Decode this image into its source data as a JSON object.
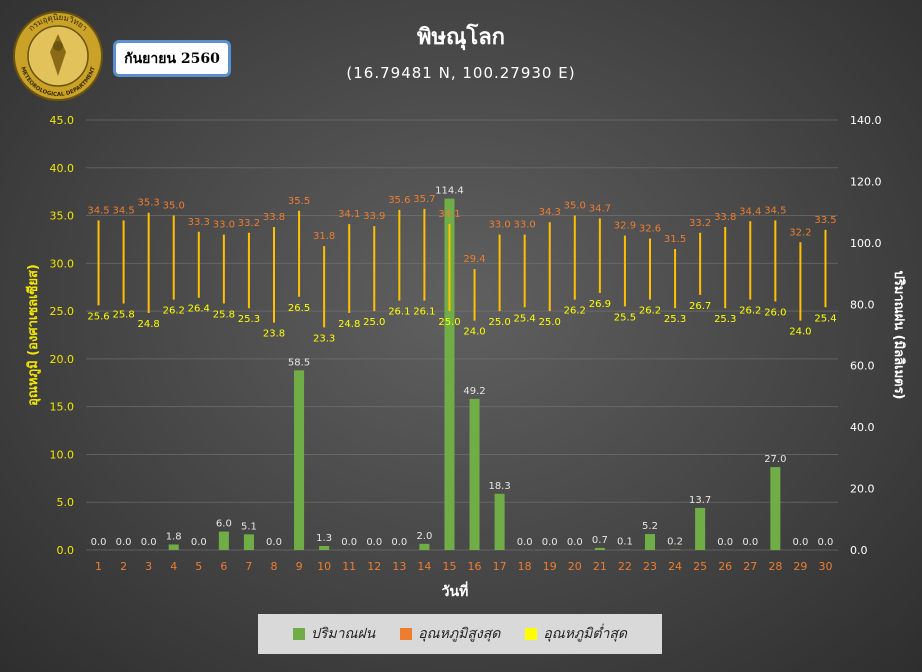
{
  "logo": {
    "text_top": "กรมอุตุนิยมวิทยา",
    "text_bottom": "METEOROLOGICAL DEPARTMENT"
  },
  "month_label": "กันยายน 2560",
  "chart_data": {
    "type": "bar+line",
    "title": "พิษณุโลก",
    "subtitle": "(16.79481 N, 100.27930 E)",
    "xlabel": "วันที่",
    "ylabel_left": "อุณหภูมิ (องศาเซลเซียส)",
    "ylabel_right": "ปริมาณฝน (มิลลิเมตร)",
    "ylim_left": [
      0,
      45
    ],
    "ylim_right": [
      0,
      140
    ],
    "yticks_left": [
      "0.0",
      "5.0",
      "10.0",
      "15.0",
      "20.0",
      "25.0",
      "30.0",
      "35.0",
      "40.0",
      "45.0"
    ],
    "yticks_right": [
      "0.0",
      "20.0",
      "40.0",
      "60.0",
      "80.0",
      "100.0",
      "120.0",
      "140.0"
    ],
    "grid": true,
    "legend_position": "bottom",
    "categories": [
      "1",
      "2",
      "3",
      "4",
      "5",
      "6",
      "7",
      "8",
      "9",
      "10",
      "11",
      "12",
      "13",
      "14",
      "15",
      "16",
      "17",
      "18",
      "19",
      "20",
      "21",
      "22",
      "23",
      "24",
      "25",
      "26",
      "27",
      "28",
      "29",
      "30"
    ],
    "series": [
      {
        "name": "ปริมาณฝน",
        "axis": "right",
        "color": "#70ad47",
        "values": [
          0.0,
          0.0,
          0.0,
          1.8,
          0.0,
          6.0,
          5.1,
          0.0,
          58.5,
          1.3,
          0.0,
          0.0,
          0.0,
          2.0,
          114.4,
          49.2,
          18.3,
          0.0,
          0.0,
          0.0,
          0.7,
          0.1,
          5.2,
          0.2,
          13.7,
          0.0,
          0.0,
          27.0,
          0.0,
          0.0
        ],
        "labels": [
          "0.0",
          "0.0",
          "0.0",
          "1.8",
          "0.0",
          "6.0",
          "5.1",
          "0.0",
          "58.5",
          "1.3",
          "0.0",
          "0.0",
          "0.0",
          "2.0",
          "114.4",
          "49.2",
          "18.3",
          "0.0",
          "0.0",
          "0.0",
          "0.7",
          "0.1",
          "5.2",
          "0.2",
          "13.7",
          "0.0",
          "0.0",
          "27.0",
          "0.0",
          "0.0"
        ]
      },
      {
        "name": "อุณหภูมิสูงสุด",
        "axis": "left",
        "color": "#ed7d31",
        "values": [
          34.5,
          34.5,
          35.3,
          35.0,
          33.3,
          33.0,
          33.2,
          33.8,
          35.5,
          31.8,
          34.1,
          33.9,
          35.6,
          35.7,
          34.1,
          29.4,
          33.0,
          33.0,
          34.3,
          35.0,
          34.7,
          32.9,
          32.6,
          31.5,
          33.2,
          33.8,
          34.4,
          34.5,
          32.2,
          33.5
        ],
        "labels": [
          "34.5",
          "34.5",
          "35.3",
          "35.0",
          "33.3",
          "33.0",
          "33.2",
          "33.8",
          "35.5",
          "31.8",
          "34.1",
          "33.9",
          "35.6",
          "35.7",
          "34.1",
          "29.4",
          "33.0",
          "33.0",
          "34.3",
          "35.0",
          "34.7",
          "32.9",
          "32.6",
          "31.5",
          "33.2",
          "33.8",
          "34.4",
          "34.5",
          "32.2",
          "33.5"
        ]
      },
      {
        "name": "อุณหภูมิต่ำสุด",
        "axis": "left",
        "color": "#ffff00",
        "values": [
          25.6,
          25.8,
          24.8,
          26.2,
          26.4,
          25.8,
          25.3,
          23.8,
          26.5,
          23.3,
          24.8,
          25.0,
          26.1,
          26.1,
          25.0,
          24.0,
          25.0,
          25.4,
          25.0,
          26.2,
          26.9,
          25.5,
          26.2,
          25.3,
          26.7,
          25.3,
          26.2,
          26.0,
          24.0,
          25.4
        ],
        "labels": [
          "25.6",
          "25.8",
          "24.8",
          "26.2",
          "26.4",
          "25.8",
          "25.3",
          "23.8",
          "26.5",
          "23.3",
          "24.8",
          "25.0",
          "26.1",
          "26.1",
          "25.0",
          "24.0",
          "25.0",
          "25.4",
          "25.0",
          "26.2",
          "26.9",
          "25.5",
          "26.2",
          "25.3",
          "26.7",
          "25.3",
          "26.2",
          "26.0",
          "24.0",
          "25.4"
        ]
      }
    ]
  }
}
